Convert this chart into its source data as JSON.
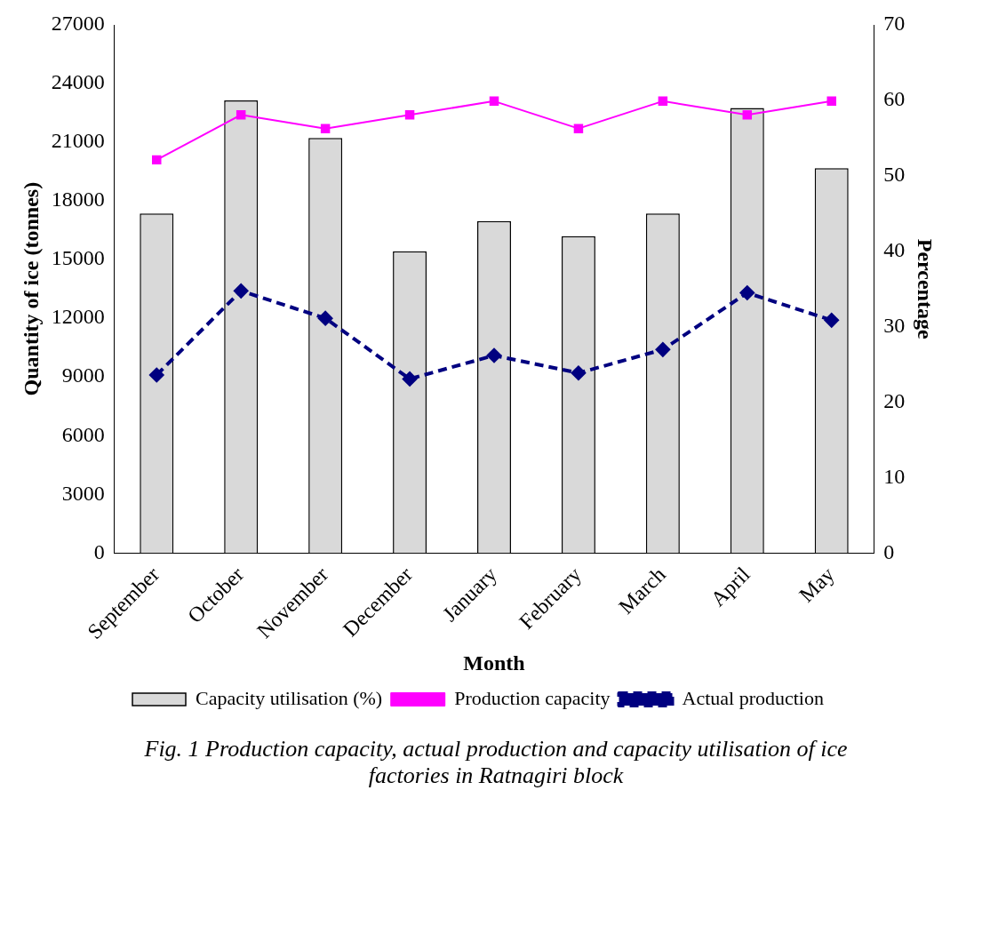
{
  "chart_data": {
    "type": "bar",
    "title": "Fig. 1 Production capacity, actual production and capacity utilisation of ice factories in Ratnagiri block",
    "xlabel": "Month",
    "ylabel": "Quantity of ice (tonnes)",
    "y2label": "Percentage",
    "categories": [
      "September",
      "October",
      "November",
      "December",
      "January",
      "February",
      "March",
      "April",
      "May"
    ],
    "series": [
      {
        "name": "Capacity utilisation (%)",
        "axis": "y2",
        "color": "#d9d9d9",
        "values": [
          45,
          60,
          55,
          40,
          44,
          42,
          45,
          59,
          51
        ]
      },
      {
        "name": "Production capacity",
        "type": "line",
        "color": "#ff00ff",
        "marker": "square",
        "line_style": "solid",
        "values": [
          20100,
          22400,
          21700,
          22400,
          23100,
          21700,
          23100,
          22400,
          23100
        ]
      },
      {
        "name": "Actual production",
        "type": "line",
        "color": "#000080",
        "marker": "diamond",
        "line_style": "dashed",
        "values": [
          9100,
          13400,
          12000,
          8900,
          10100,
          9200,
          10400,
          13300,
          11900
        ]
      }
    ],
    "ylim": [
      0,
      27000
    ],
    "yticks": [
      0,
      3000,
      6000,
      9000,
      12000,
      15000,
      18000,
      21000,
      24000,
      27000
    ],
    "y2lim": [
      0,
      70
    ],
    "y2ticks": [
      0,
      10,
      20,
      30,
      40,
      50,
      60,
      70
    ],
    "grid": false,
    "legend": "bottom"
  }
}
